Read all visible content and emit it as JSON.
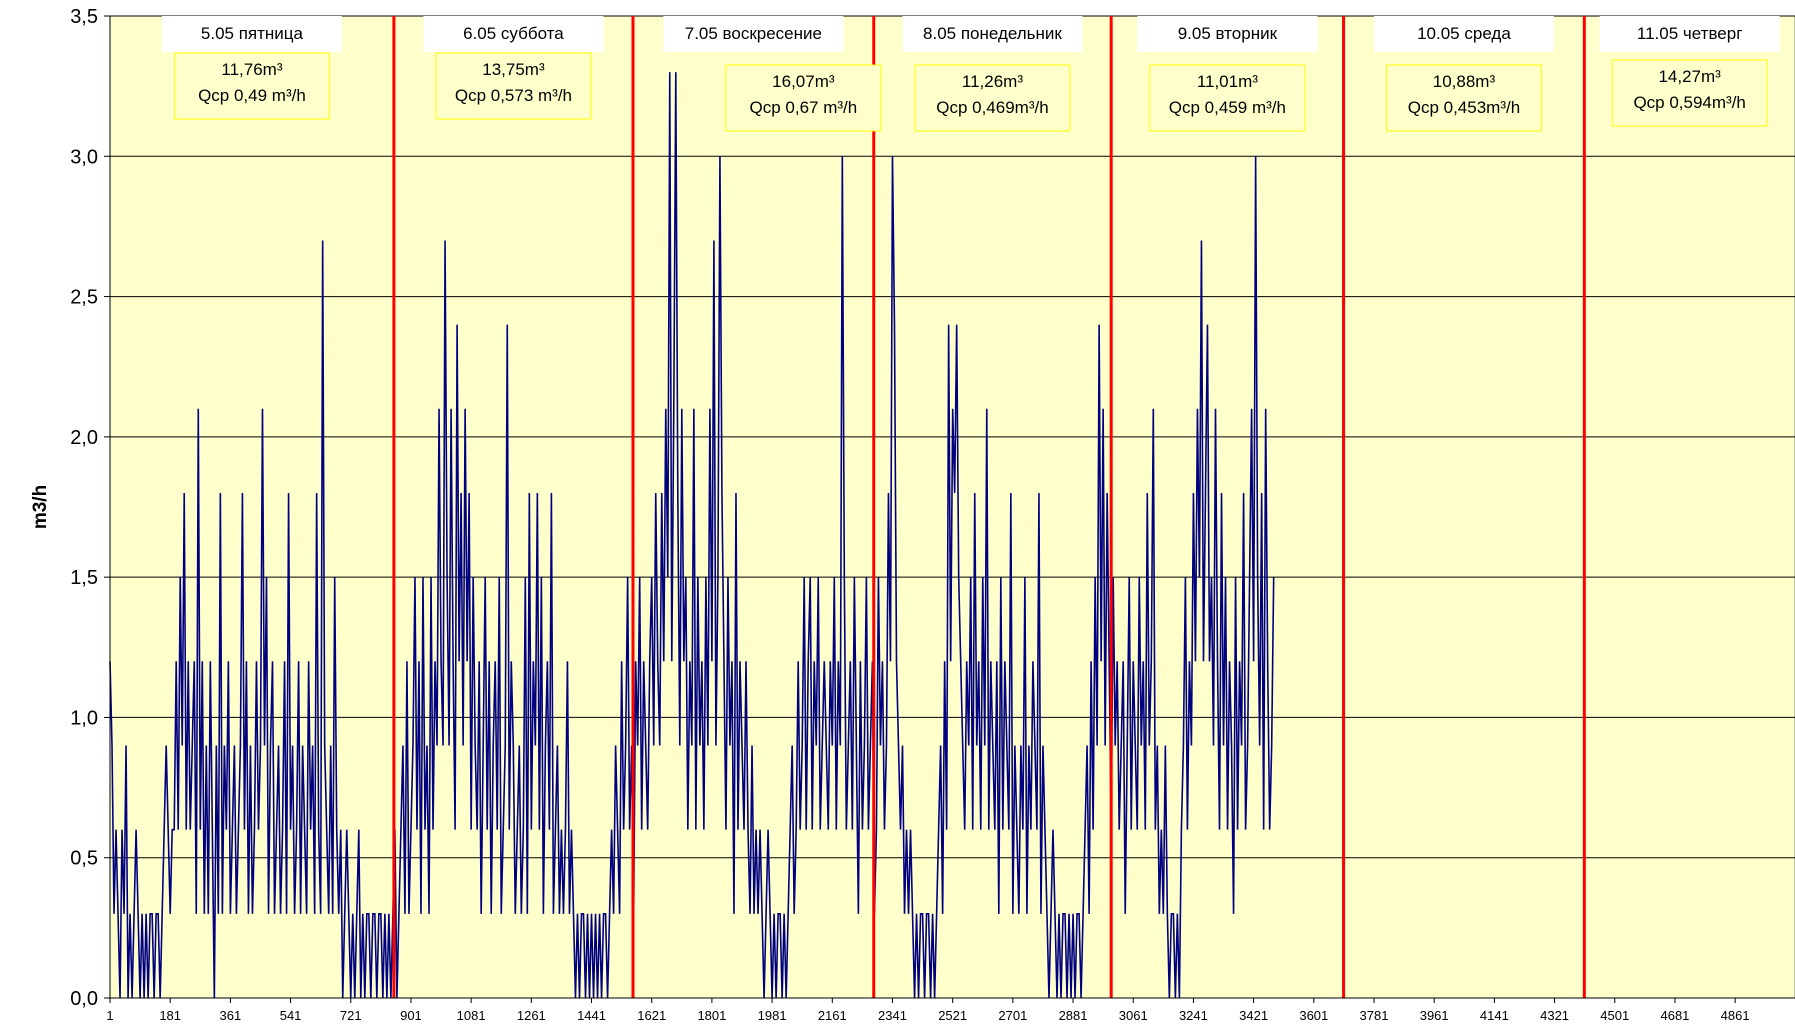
{
  "chart_data": {
    "type": "line",
    "title": "",
    "xlabel": "",
    "ylabel": "m3/h",
    "xlim": [
      1,
      5040
    ],
    "ylim": [
      0,
      3.5
    ],
    "y_ticks": [
      0,
      0.5,
      1,
      1.5,
      2,
      2.5,
      3,
      3.5
    ],
    "y_tick_labels": [
      "0,0",
      "0,5",
      "1,0",
      "1,5",
      "2,0",
      "2,5",
      "3,0",
      "3,5"
    ],
    "x_ticks": [
      1,
      181,
      361,
      541,
      721,
      901,
      1081,
      1261,
      1441,
      1621,
      1801,
      1981,
      2161,
      2341,
      2521,
      2701,
      2881,
      3061,
      3241,
      3421,
      3601,
      3781,
      3961,
      4141,
      4321,
      4501,
      4681,
      4861
    ],
    "x_tick_labels": [
      "1",
      "181",
      "361",
      "541",
      "721",
      "901",
      "1081",
      "1261",
      "1441",
      "1621",
      "1801",
      "1981",
      "2161",
      "2341",
      "2521",
      "2701",
      "2881",
      "3061",
      "3241",
      "3421",
      "3601",
      "3781",
      "3961",
      "4141",
      "4321",
      "4501",
      "4681",
      "4861"
    ],
    "grid": "horizontal",
    "background_color": "#ffffcc",
    "series_color": "#000080",
    "divider_color": "#ff0000",
    "day_boundaries": [
      850,
      1565,
      2285,
      2995,
      3690,
      4410
    ],
    "days": [
      {
        "label": "5.05 пятница",
        "volume": "11,76m³",
        "avg": "Qср 0,49 m³/h"
      },
      {
        "label": "6.05 суббота",
        "volume": "13,75m³",
        "avg": "Qср 0,573 m³/h"
      },
      {
        "label": "7.05 воскресение",
        "volume": "16,07m³",
        "avg": "Qср 0,67 m³/h"
      },
      {
        "label": "8.05 понедельник",
        "volume": "11,26m³",
        "avg": "Qср 0,469m³/h"
      },
      {
        "label": "9.05 вторник",
        "volume": "11,01m³",
        "avg": "Qср 0,459 m³/h"
      },
      {
        "label": "10.05 среда",
        "volume": "10,88m³",
        "avg": "Qср 0,453m³/h"
      },
      {
        "label": "11.05 четверг",
        "volume": "14,27m³",
        "avg": "Qср 0,594m³/h"
      }
    ],
    "series": [
      {
        "values_step": 6,
        "values": [
          1.2,
          0.9,
          0.3,
          0.6,
          0.3,
          0,
          0.6,
          0.3,
          0.9,
          0,
          0.3,
          0,
          0.3,
          0.6,
          0.3,
          0,
          0.3,
          0,
          0.3,
          0,
          0.3,
          0.3,
          0,
          0.3,
          0.3,
          0,
          0.3,
          0.6,
          0.9,
          0.6,
          0.3,
          0.6,
          0.6,
          1.2,
          0.6,
          1.5,
          0.9,
          1.8,
          0.6,
          1.2,
          0.6,
          0.9,
          1.2,
          0.3,
          2.1,
          0.6,
          1.2,
          0.3,
          0.9,
          0.3,
          1.2,
          0.6,
          0,
          0.9,
          0.3,
          1.8,
          0.3,
          0.9,
          0.6,
          1.2,
          0.3,
          0.6,
          0.9,
          0.3,
          0.6,
          0.9,
          1.8,
          0.6,
          1.2,
          0.3,
          0.9,
          0.3,
          0.6,
          1.2,
          0.6,
          0.9,
          2.1,
          0.9,
          1.5,
          0.3,
          0.9,
          1.2,
          0.3,
          0.6,
          0.9,
          0.3,
          0.6,
          1.2,
          0.3,
          1.8,
          0.6,
          0.9,
          0.3,
          0.6,
          1.2,
          0.3,
          0.9,
          0.6,
          0.3,
          1.2,
          0.6,
          0.9,
          0.3,
          1.8,
          0.6,
          0.3,
          2.7,
          0.9,
          0.6,
          0.3,
          0.9,
          0.3,
          1.5,
          0.6,
          0.3,
          0.6,
          0,
          0.3,
          0.6,
          0.3,
          0,
          0.3,
          0,
          0.3,
          0.6,
          0,
          0.3,
          0,
          0.3,
          0.3,
          0,
          0.3,
          0.3,
          0,
          0.3,
          0.3,
          0,
          0.3,
          0,
          0.3,
          0,
          0.3,
          0.6,
          0,
          0.3,
          0.6,
          0.9,
          0.3,
          1.2,
          0.3,
          0.6,
          0.9,
          1.5,
          0.6,
          1.2,
          0.3,
          1.5,
          0.6,
          0.9,
          0.3,
          1.5,
          0.6,
          1.2,
          0.9,
          2.1,
          1.2,
          0.9,
          2.7,
          1.5,
          0.9,
          2.1,
          1.2,
          0.6,
          2.4,
          1.2,
          1.8,
          0.9,
          2.1,
          1.2,
          1.8,
          0.6,
          1.5,
          0.9,
          0.6,
          1.2,
          0.3,
          0.9,
          1.5,
          0.6,
          1.2,
          0.3,
          0.9,
          1.2,
          0.6,
          1.5,
          0.3,
          0.6,
          0.9,
          2.4,
          0.6,
          1.2,
          0.9,
          0.3,
          0.6,
          0.9,
          0.3,
          0.6,
          1.5,
          0.3,
          1.8,
          0.6,
          1.2,
          0.9,
          1.8,
          0.6,
          1.5,
          0.3,
          0.9,
          1.2,
          0.6,
          1.8,
          0.3,
          0.6,
          0.9,
          0.3,
          0.6,
          0.3,
          0.6,
          1.2,
          0.3,
          0.6,
          0.3,
          0,
          0.3,
          0,
          0.3,
          0.3,
          0,
          0.3,
          0,
          0.3,
          0,
          0.3,
          0,
          0.3,
          0,
          0.3,
          0.3,
          0,
          0.3,
          0.6,
          0.3,
          0.9,
          0.6,
          0.3,
          1.2,
          0.6,
          0.9,
          1.5,
          0.6,
          0.9,
          0.3,
          1.2,
          0.9,
          1.5,
          0.6,
          1.2,
          0.9,
          0.6,
          1.2,
          1.5,
          0.9,
          1.8,
          1.2,
          0.9,
          1.8,
          1.2,
          2.1,
          1.5,
          3.3,
          1.2,
          2.1,
          3.3,
          1.8,
          0.9,
          2.1,
          1.2,
          1.5,
          0.6,
          1.2,
          0.9,
          2.1,
          0.6,
          1.5,
          0.9,
          1.2,
          0.6,
          1.5,
          0.9,
          2.1,
          1.2,
          2.7,
          0.9,
          1.5,
          3.0,
          1.8,
          1.2,
          0.6,
          1.5,
          0.9,
          1.2,
          0.3,
          1.8,
          0.6,
          1.2,
          0.9,
          0.6,
          1.2,
          0.6,
          0.3,
          0.9,
          0.3,
          0.6,
          0.3,
          0.6,
          0.3,
          0,
          0.3,
          0.6,
          0.3,
          0,
          0.3,
          0,
          0.3,
          0.3,
          0,
          0.3,
          0,
          0.3,
          0.6,
          0.9,
          0.3,
          0.6,
          1.2,
          0.6,
          0.9,
          1.5,
          0.6,
          1.2,
          1.5,
          0.6,
          1.2,
          0.9,
          1.5,
          0.6,
          0.9,
          1.2,
          0.9,
          0.6,
          1.2,
          0.9,
          1.5,
          0.6,
          1.2,
          0.9,
          3.0,
          1.5,
          0.6,
          0.9,
          1.2,
          0.6,
          1.5,
          0.9,
          0.3,
          1.2,
          0.6,
          0.9,
          1.5,
          0.6,
          0.9,
          1.2,
          0.3,
          0.6,
          1.5,
          0.9,
          1.2,
          0.6,
          0.9,
          1.8,
          1.2,
          3.0,
          2.4,
          1.2,
          0.9,
          0.6,
          0.9,
          0.3,
          0.6,
          0.3,
          0.6,
          0.3,
          0,
          0.3,
          0,
          0.3,
          0.3,
          0,
          0.3,
          0.3,
          0,
          0.3,
          0,
          0.3,
          0.6,
          0.9,
          0.3,
          1.2,
          0.6,
          2.4,
          1.2,
          2.1,
          1.8,
          2.4,
          1.5,
          1.2,
          0.9,
          0.6,
          1.2,
          0.9,
          1.5,
          0.6,
          1.8,
          0.9,
          1.2,
          0.6,
          1.5,
          0.9,
          2.1,
          0.6,
          1.2,
          0.9,
          0.6,
          1.2,
          0.3,
          1.5,
          0.6,
          1.2,
          0.9,
          0.6,
          1.8,
          0.3,
          0.9,
          0.6,
          0.3,
          0.9,
          0.6,
          1.5,
          0.3,
          0.9,
          0.6,
          1.2,
          0.9,
          0.6,
          1.8,
          0.3,
          0.9,
          0.6,
          0.3,
          0,
          0.3,
          0.6,
          0.3,
          0,
          0.3,
          0,
          0.3,
          0.3,
          0,
          0.3,
          0,
          0.3,
          0,
          0.3,
          0.3,
          0,
          0.3,
          0.6,
          0.9,
          0.3,
          1.2,
          0.6,
          1.5,
          0.9,
          2.4,
          1.2,
          2.1,
          0.9,
          1.8,
          1.2,
          0.6,
          1.5,
          0.9,
          1.2,
          0.6,
          0.9,
          1.2,
          0.3,
          0.9,
          1.5,
          0.6,
          1.2,
          0.9,
          0.6,
          1.5,
          0.9,
          1.2,
          0.6,
          1.8,
          0.9,
          1.2,
          2.1,
          0.6,
          0.9,
          0.3,
          0.6,
          0.3,
          0.9,
          0.3,
          0,
          0.3,
          0.3,
          0,
          0.3,
          0,
          0.6,
          0.9,
          1.5,
          0.6,
          1.2,
          0.9,
          1.8,
          1.2,
          2.1,
          1.5,
          2.7,
          1.2,
          1.8,
          2.4,
          1.2,
          1.5,
          0.9,
          2.1,
          1.2,
          0.6,
          1.8,
          0.9,
          1.5,
          0.6,
          1.2,
          0.9,
          0.3,
          1.5,
          0.6,
          1.2,
          0.9,
          1.8,
          0.6,
          0.9,
          1.5,
          2.1,
          1.2,
          3.0,
          1.5,
          0.9,
          1.8,
          0.6,
          2.1,
          1.2,
          0.6,
          0.9,
          1.5
        ]
      }
    ]
  }
}
